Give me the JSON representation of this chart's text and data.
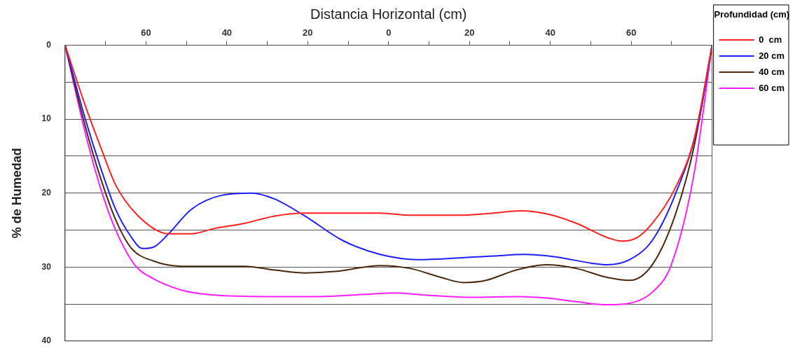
{
  "chart_data": {
    "type": "line",
    "xlabel": "Distancia Horizontal (cm)",
    "ylabel": "% de Humedad",
    "legend_title": "Profundidad (cm)",
    "legend": "right",
    "grid": "y",
    "marker": "none",
    "line_style": "solid",
    "xlim": [
      -80,
      80
    ],
    "xticks": [
      {
        "value": -70,
        "label": null
      },
      {
        "value": -60,
        "label": "60"
      },
      {
        "value": -50,
        "label": null
      },
      {
        "value": -40,
        "label": "40"
      },
      {
        "value": -30,
        "label": null
      },
      {
        "value": -20,
        "label": "20"
      },
      {
        "value": -10,
        "label": null
      },
      0,
      {
        "value": 10,
        "label": null
      },
      20,
      {
        "value": 30,
        "label": null
      },
      40,
      {
        "value": 50,
        "label": null
      },
      60,
      {
        "value": 70,
        "label": null
      }
    ],
    "ylim": [
      40,
      0
    ],
    "yticks": [
      0,
      {
        "value": 5,
        "label": null
      },
      10,
      {
        "value": 15,
        "label": null
      },
      20,
      {
        "value": 25,
        "label": null
      },
      30,
      {
        "value": 35,
        "label": null
      },
      40
    ],
    "series": [
      {
        "name": "0  cm",
        "color": "#ff2020",
        "x": [
          -80,
          -75,
          -71.2,
          -67.5,
          -61.9,
          -54.4,
          -48.8,
          -43.2,
          -35.7,
          -28.2,
          -20.7,
          -11.4,
          -2.1,
          5.4,
          16.6,
          26,
          32.5,
          39,
          46.5,
          54,
          57.8,
          61.5,
          65.2,
          70.8,
          75.5,
          80
        ],
        "values": [
          0,
          8.2,
          13.8,
          18.9,
          23.1,
          25.5,
          25.5,
          24.8,
          24.1,
          23.1,
          22.7,
          22.7,
          22.7,
          23,
          23,
          22.7,
          22.4,
          22.8,
          24.1,
          26,
          26.5,
          26,
          24.1,
          19.4,
          12.8,
          0
        ]
      },
      {
        "name": "20 cm",
        "color": "#2020ff",
        "x": [
          -80,
          -75,
          -71.2,
          -67.5,
          -63.7,
          -60.9,
          -58.1,
          -54.4,
          -48.8,
          -41.3,
          -33.8,
          -28.2,
          -20.7,
          -11.4,
          -2.1,
          7.3,
          16.6,
          26,
          33.5,
          40.9,
          50.3,
          54,
          59.6,
          65.2,
          70.8,
          76.4,
          80
        ],
        "values": [
          0,
          10,
          16.6,
          22.2,
          25.9,
          27.5,
          27.3,
          25.5,
          22.2,
          20.3,
          20,
          20.8,
          23.1,
          26.4,
          28.3,
          29,
          28.8,
          28.5,
          28.3,
          28.6,
          29.5,
          29.7,
          29,
          26.4,
          20.3,
          11,
          0
        ]
      },
      {
        "name": "40 cm",
        "color": "#4a2a10",
        "x": [
          -80,
          -75,
          -71.2,
          -67.5,
          -63.7,
          -58.1,
          -50.7,
          -43.2,
          -35.7,
          -28.2,
          -20.7,
          -13.3,
          -5.8,
          -2.1,
          5.4,
          12.9,
          18.5,
          24.1,
          31.6,
          39,
          46.5,
          54,
          59.6,
          65.2,
          70.8,
          75.5,
          80
        ],
        "values": [
          0,
          11,
          18,
          23.6,
          27.4,
          29.2,
          29.9,
          29.9,
          29.9,
          30.4,
          30.8,
          30.6,
          30,
          29.8,
          30.2,
          31.4,
          32.1,
          31.8,
          30.4,
          29.7,
          30.2,
          31.4,
          31.8,
          29.7,
          23.1,
          13.8,
          0
        ]
      },
      {
        "name": "60 cm",
        "color": "#ff20ff",
        "x": [
          -80,
          -75,
          -71.2,
          -67.5,
          -62.8,
          -58.1,
          -50.7,
          -43.2,
          -30.1,
          -17.2,
          -5.8,
          1.7,
          9.2,
          20.4,
          31.6,
          39,
          46.5,
          54,
          59.6,
          65.2,
          69.9,
          75.5,
          80
        ],
        "values": [
          0,
          11.9,
          19.4,
          25,
          29.7,
          31.6,
          33.2,
          33.8,
          34,
          34,
          33.7,
          33.5,
          33.8,
          34.1,
          34,
          34.2,
          34.7,
          35.1,
          34.9,
          33.4,
          29.7,
          17.5,
          0
        ]
      }
    ]
  }
}
